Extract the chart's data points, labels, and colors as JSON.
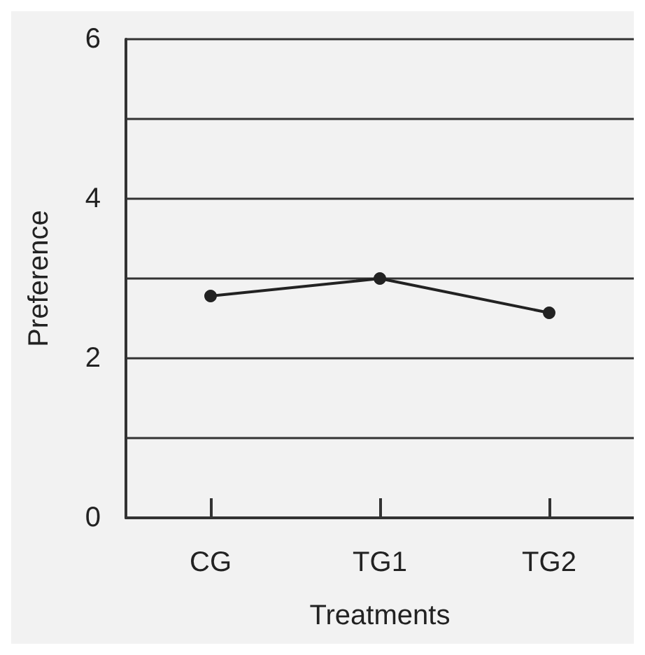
{
  "chart_data": {
    "type": "line",
    "xlabel": "Treatments",
    "ylabel": "Preference",
    "categories": [
      "CG",
      "TG1",
      "TG2"
    ],
    "series": [
      {
        "color": "#222222",
        "values": [
          2.78,
          3.0,
          2.57
        ]
      }
    ],
    "ylim": [
      0,
      6
    ],
    "yticks": [
      0,
      {
        "value": 1,
        "label": null
      },
      2,
      {
        "value": 3,
        "label": null
      },
      4,
      {
        "value": 5,
        "label": null
      },
      6
    ],
    "grid": "y",
    "marker": "circle",
    "line_style": "solid"
  }
}
